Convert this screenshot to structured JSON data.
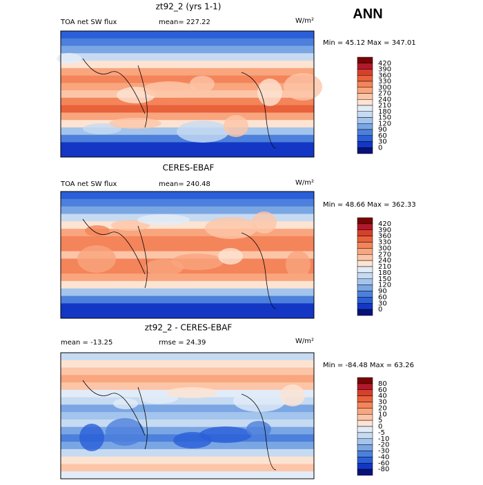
{
  "title": "ANN",
  "panels": [
    {
      "title": "zt92_2 (yrs 1-1)",
      "left_label": "TOA net SW flux",
      "stat_label": "mean= 227.22",
      "units": "W/m²",
      "range_label": "Min =  45.12 Max = 347.01",
      "colorbar": {
        "levels": [
          420,
          390,
          360,
          330,
          300,
          270,
          240,
          210,
          180,
          150,
          120,
          90,
          60,
          30,
          0
        ],
        "colors": [
          "#7a0403",
          "#b2182b",
          "#d6402a",
          "#e8623b",
          "#f4845a",
          "#f9a57e",
          "#fcc5a8",
          "#fde3d2",
          "#e2ecf8",
          "#c6dbf2",
          "#a3c4ec",
          "#7aa6e4",
          "#4d80dc",
          "#2a5fd8",
          "#1337c4",
          "#08127a"
        ]
      }
    },
    {
      "title": "CERES-EBAF",
      "left_label": "TOA net SW flux",
      "stat_label": "mean= 240.48",
      "units": "W/m²",
      "range_label": "Min =  48.66 Max = 362.33",
      "colorbar": {
        "levels": [
          420,
          390,
          360,
          330,
          300,
          270,
          240,
          210,
          180,
          150,
          120,
          90,
          60,
          30,
          0
        ],
        "colors": [
          "#7a0403",
          "#b2182b",
          "#d6402a",
          "#e8623b",
          "#f4845a",
          "#f9a57e",
          "#fcc5a8",
          "#fde3d2",
          "#e2ecf8",
          "#c6dbf2",
          "#a3c4ec",
          "#7aa6e4",
          "#4d80dc",
          "#2a5fd8",
          "#1337c4",
          "#08127a"
        ]
      }
    },
    {
      "title": "zt92_2 - CERES-EBAF",
      "left_label": "mean = -13.25",
      "stat_label": "rmse =  24.39",
      "units": "W/m²",
      "range_label": "Min = -84.48 Max =  63.26",
      "colorbar": {
        "levels": [
          80,
          60,
          40,
          30,
          20,
          10,
          5,
          0,
          -5,
          -10,
          -20,
          -30,
          -40,
          -60,
          -80
        ],
        "colors": [
          "#7a0403",
          "#b2182b",
          "#d6402a",
          "#e8623b",
          "#f4845a",
          "#f9a57e",
          "#fcc5a8",
          "#fde3d2",
          "#e2ecf8",
          "#c6dbf2",
          "#a3c4ec",
          "#7aa6e4",
          "#4d80dc",
          "#2a5fd8",
          "#1337c4",
          "#08127a"
        ]
      }
    }
  ]
}
